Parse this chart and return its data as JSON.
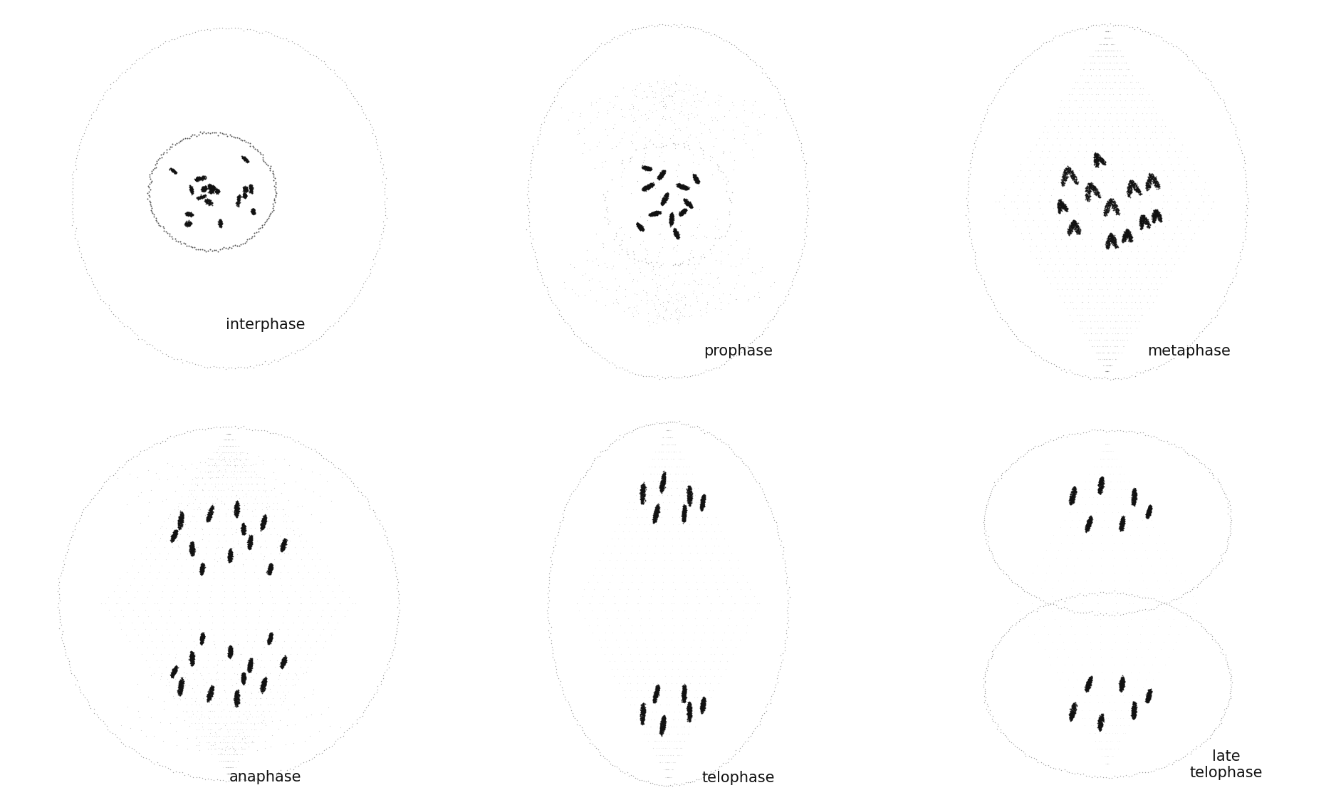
{
  "stages": [
    "interphase",
    "prophase",
    "metaphase",
    "anaphase",
    "telophase",
    "late\ntelophase"
  ],
  "bg_color": "#ffffff",
  "dot_color": "#444444",
  "chrom_color": "#1a1a1a",
  "label_fontsize": 15,
  "label_color": "#111111"
}
